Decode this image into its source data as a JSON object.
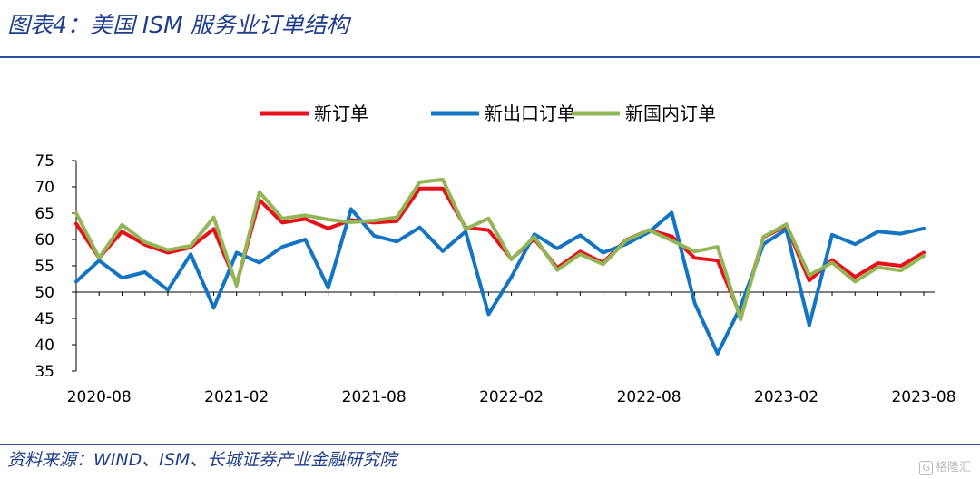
{
  "header": {
    "title": "图表4：美国 ISM 服务业订单结构"
  },
  "footer": {
    "source": "资料来源：WIND、ISM、长城证券产业金融研究院",
    "watermark_badge": "G",
    "watermark_text": "格隆汇"
  },
  "chart_data": {
    "type": "line",
    "title": "",
    "xlabel": "",
    "ylabel": "",
    "ylim": [
      35,
      75
    ],
    "y_ticks": [
      35,
      40,
      45,
      50,
      55,
      60,
      65,
      70,
      75
    ],
    "x_tick_labels": [
      "2020-08",
      "2021-02",
      "2021-08",
      "2022-02",
      "2022-08",
      "2023-02",
      "2023-08"
    ],
    "legend_position": "top-center",
    "grid": false,
    "x": [
      "2020-07",
      "2020-08",
      "2020-09",
      "2020-10",
      "2020-11",
      "2020-12",
      "2021-01",
      "2021-02",
      "2021-03",
      "2021-04",
      "2021-05",
      "2021-06",
      "2021-07",
      "2021-08",
      "2021-09",
      "2021-10",
      "2021-11",
      "2021-12",
      "2022-01",
      "2022-02",
      "2022-03",
      "2022-04",
      "2022-05",
      "2022-06",
      "2022-07",
      "2022-08",
      "2022-09",
      "2022-10",
      "2022-11",
      "2022-12",
      "2023-01",
      "2023-02",
      "2023-03",
      "2023-04",
      "2023-05",
      "2023-06",
      "2023-07",
      "2023-08"
    ],
    "series": [
      {
        "name": "新订单",
        "color": "#e8101a",
        "values": [
          63.0,
          56.5,
          61.5,
          59.0,
          57.5,
          58.5,
          62.0,
          51.5,
          67.5,
          63.2,
          63.9,
          62.1,
          63.7,
          63.2,
          63.5,
          69.7,
          69.7,
          62.3,
          61.8,
          56.3,
          60.1,
          54.6,
          57.7,
          55.6,
          59.9,
          61.8,
          60.6,
          56.5,
          56.0,
          45.5,
          60.4,
          62.6,
          52.2,
          56.1,
          52.9,
          55.5,
          55.0,
          57.5
        ]
      },
      {
        "name": "新出口订单",
        "color": "#1474c4",
        "values": [
          52.0,
          56.0,
          52.7,
          53.8,
          50.4,
          57.2,
          47.0,
          57.5,
          55.6,
          58.6,
          60.0,
          50.8,
          65.8,
          60.7,
          59.6,
          62.3,
          57.8,
          61.5,
          45.8,
          52.9,
          61.0,
          58.3,
          60.8,
          57.5,
          59.1,
          61.4,
          65.1,
          47.9,
          38.3,
          47.2,
          59.1,
          61.9,
          43.7,
          60.9,
          59.1,
          61.5,
          61.1,
          62.1
        ]
      },
      {
        "name": "新国内订单",
        "color": "#92b555",
        "values": [
          65.0,
          56.5,
          62.8,
          59.5,
          58.0,
          58.8,
          64.2,
          51.2,
          69.0,
          64.0,
          64.6,
          63.8,
          63.3,
          63.6,
          64.2,
          70.9,
          71.4,
          62.0,
          64.0,
          56.2,
          60.5,
          54.2,
          57.2,
          55.3,
          59.8,
          61.8,
          59.8,
          57.7,
          58.6,
          44.8,
          60.5,
          62.9,
          53.2,
          55.6,
          52.0,
          54.7,
          54.1,
          56.9
        ]
      }
    ]
  }
}
